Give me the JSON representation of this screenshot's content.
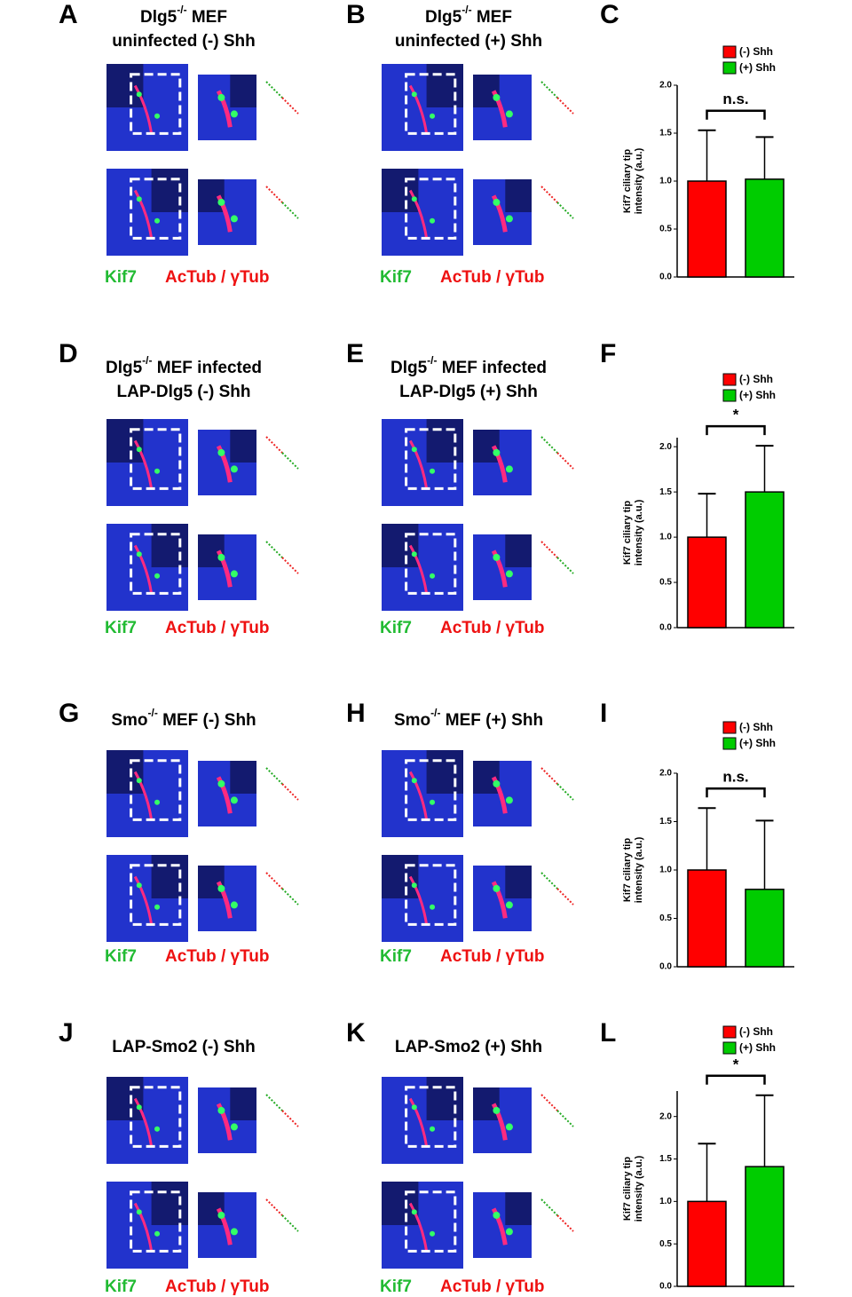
{
  "image_panels": [
    {
      "letter": "A",
      "title": [
        {
          "base": "Dlg5",
          "sup": "-/-",
          "tail": " MEF"
        },
        "uninfected (-) Shh"
      ],
      "stain_green": "Kif7",
      "stain_red": "AcTub / γTub"
    },
    {
      "letter": "B",
      "title": [
        {
          "base": "Dlg5",
          "sup": "-/-",
          "tail": " MEF"
        },
        "uninfected (+) Shh"
      ],
      "stain_green": "Kif7",
      "stain_red": "AcTub / γTub"
    },
    {
      "letter": "D",
      "title": [
        {
          "base": "Dlg5",
          "sup": "-/-",
          "tail": " MEF infected"
        },
        "LAP-Dlg5 (-) Shh"
      ],
      "stain_green": "Kif7",
      "stain_red": "AcTub / γTub"
    },
    {
      "letter": "E",
      "title": [
        {
          "base": "Dlg5",
          "sup": "-/-",
          "tail": " MEF infected"
        },
        "LAP-Dlg5 (+) Shh"
      ],
      "stain_green": "Kif7",
      "stain_red": "AcTub / γTub"
    },
    {
      "letter": "G",
      "title": [
        {
          "base": "Smo",
          "sup": "-/-",
          "tail": " MEF (-) Shh"
        }
      ],
      "stain_green": "Kif7",
      "stain_red": "AcTub / γTub"
    },
    {
      "letter": "H",
      "title": [
        {
          "base": "Smo",
          "sup": "-/-",
          "tail": " MEF (+) Shh"
        }
      ],
      "stain_green": "Kif7",
      "stain_red": "AcTub / γTub"
    },
    {
      "letter": "J",
      "title": [
        "LAP-Smo2 (-) Shh"
      ],
      "stain_green": "Kif7",
      "stain_red": "AcTub / γTub"
    },
    {
      "letter": "K",
      "title": [
        "LAP-Smo2 (+) Shh"
      ],
      "stain_green": "Kif7",
      "stain_red": "AcTub / γTub"
    }
  ],
  "chart_data": [
    {
      "type": "bar",
      "panel_label": "C",
      "y_label": [
        "Kif7 ciliary tip",
        "intensity (a.u.)"
      ],
      "annotation": "n.s.",
      "categories": [
        null
      ],
      "series": [
        {
          "name": "(-) Shh",
          "color": "#ff0000",
          "values": [
            1.0
          ],
          "errors": [
            0.53
          ]
        },
        {
          "name": "(+) Shh",
          "color": "#00cc00",
          "values": [
            1.02
          ],
          "errors": [
            0.44
          ]
        }
      ],
      "ylim": [
        0,
        2.0
      ],
      "yticks": [
        {
          "value": 0,
          "label": "0.0"
        },
        {
          "value": 0.5,
          "label": "0.5"
        },
        {
          "value": 1,
          "label": "1.0"
        },
        {
          "value": 1.5,
          "label": "1.5"
        },
        {
          "value": 2,
          "label": "2.0"
        }
      ]
    },
    {
      "type": "bar",
      "panel_label": "F",
      "y_label": [
        "Kif7 ciliary tip",
        "intensity (a.u.)"
      ],
      "annotation": "*",
      "categories": [
        null
      ],
      "series": [
        {
          "name": "(-) Shh",
          "color": "#ff0000",
          "values": [
            1.0
          ],
          "errors": [
            0.48
          ]
        },
        {
          "name": "(+) Shh",
          "color": "#00cc00",
          "values": [
            1.5
          ],
          "errors": [
            0.51
          ]
        }
      ],
      "ylim": [
        0,
        2.1
      ],
      "yticks": [
        {
          "value": 0,
          "label": "0.0"
        },
        {
          "value": 0.5,
          "label": "0.5"
        },
        {
          "value": 1,
          "label": "1.0"
        },
        {
          "value": 1.5,
          "label": "1.5"
        },
        {
          "value": 2,
          "label": "2.0"
        }
      ]
    },
    {
      "type": "bar",
      "panel_label": "I",
      "y_label": [
        "Kif7 ciliary tip",
        "intensity (a.u.)"
      ],
      "annotation": "n.s.",
      "categories": [
        null
      ],
      "series": [
        {
          "name": "(-) Shh",
          "color": "#ff0000",
          "values": [
            1.0
          ],
          "errors": [
            0.64
          ]
        },
        {
          "name": "(+) Shh",
          "color": "#00cc00",
          "values": [
            0.8
          ],
          "errors": [
            0.71
          ]
        }
      ],
      "ylim": [
        0,
        2.0
      ],
      "yticks": [
        {
          "value": 0,
          "label": "0.0"
        },
        {
          "value": 0.5,
          "label": "0.5"
        },
        {
          "value": 1,
          "label": "1.0"
        },
        {
          "value": 1.5,
          "label": "1.5"
        },
        {
          "value": 2,
          "label": "2.0"
        }
      ]
    },
    {
      "type": "bar",
      "panel_label": "L",
      "y_label": [
        "Kif7 ciliary tip",
        "intensity (a.u.)"
      ],
      "annotation": "*",
      "categories": [
        null
      ],
      "series": [
        {
          "name": "(-) Shh",
          "color": "#ff0000",
          "values": [
            1.0
          ],
          "errors": [
            0.68
          ]
        },
        {
          "name": "(+) Shh",
          "color": "#00cc00",
          "values": [
            1.41
          ],
          "errors": [
            0.84
          ]
        }
      ],
      "ylim": [
        0,
        2.3
      ],
      "yticks": [
        {
          "value": 0,
          "label": "0.0"
        },
        {
          "value": 0.5,
          "label": "0.5"
        },
        {
          "value": 1,
          "label": "1.0"
        },
        {
          "value": 1.5,
          "label": "1.5"
        },
        {
          "value": 2,
          "label": "2.0"
        }
      ]
    }
  ]
}
